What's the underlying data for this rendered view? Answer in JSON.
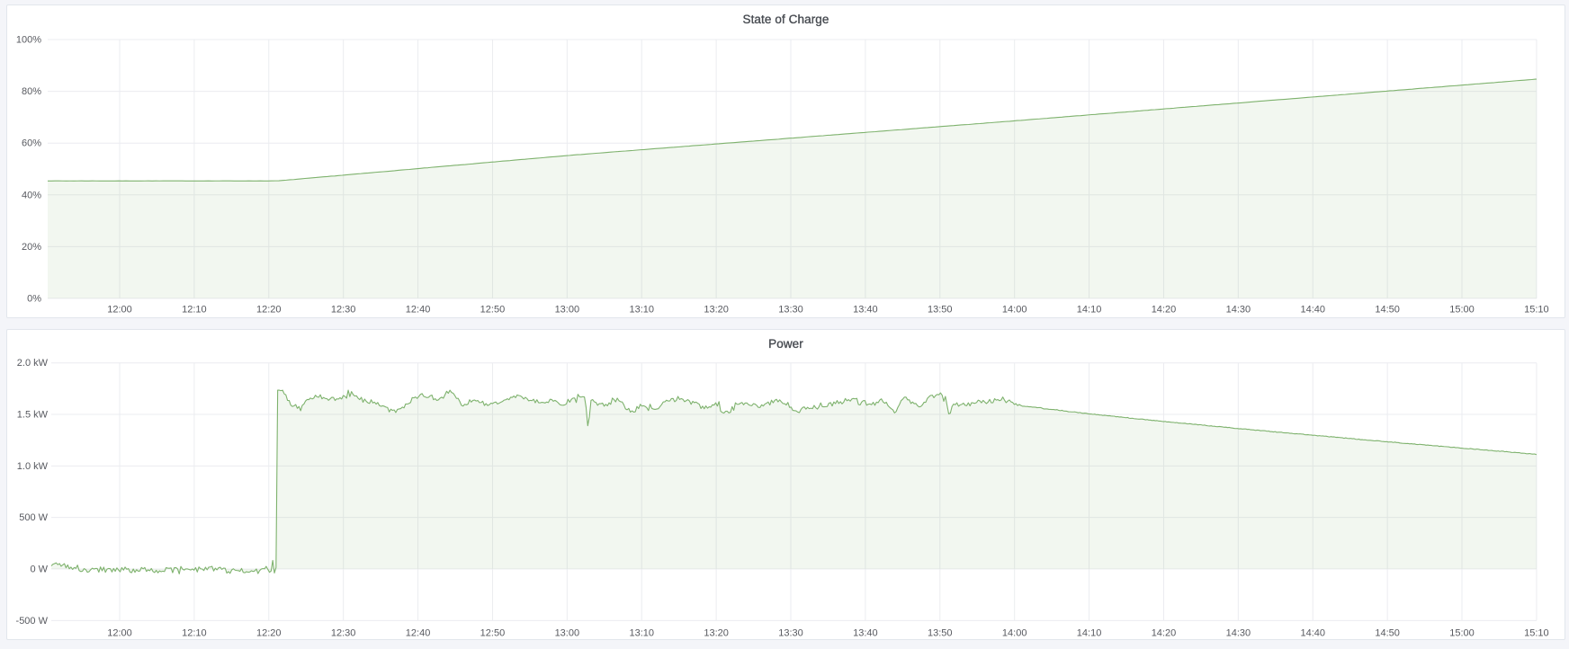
{
  "style": {
    "page_background": "#f4f5f9",
    "panel_background": "#ffffff",
    "panel_border": "#e2e6ec",
    "grid_color": "#ebecf0",
    "axis_text_color": "#57595f",
    "title_color": "#474b51",
    "line_color": "#7eb26d",
    "fill_color": "rgba(126,178,109,0.10)"
  },
  "chart_data": [
    {
      "type": "area",
      "title": "State of Charge",
      "unit": "percent",
      "ylim": [
        0,
        100
      ],
      "x_range": [
        "11:51",
        "15:10"
      ],
      "yticks": [
        {
          "v": 0,
          "label": "0%"
        },
        {
          "v": 20,
          "label": "20%"
        },
        {
          "v": 40,
          "label": "40%"
        },
        {
          "v": 60,
          "label": "60%"
        },
        {
          "v": 80,
          "label": "80%"
        },
        {
          "v": 100,
          "label": "100%"
        }
      ],
      "xticks": [
        {
          "t": 0,
          "label": "12:00"
        },
        {
          "t": 10,
          "label": "12:10"
        },
        {
          "t": 20,
          "label": "12:20"
        },
        {
          "t": 30,
          "label": "12:30"
        },
        {
          "t": 40,
          "label": "12:40"
        },
        {
          "t": 50,
          "label": "12:50"
        },
        {
          "t": 60,
          "label": "13:00"
        },
        {
          "t": 70,
          "label": "13:10"
        },
        {
          "t": 80,
          "label": "13:20"
        },
        {
          "t": 90,
          "label": "13:30"
        },
        {
          "t": 100,
          "label": "13:40"
        },
        {
          "t": 110,
          "label": "13:50"
        },
        {
          "t": 120,
          "label": "14:00"
        },
        {
          "t": 130,
          "label": "14:10"
        },
        {
          "t": 140,
          "label": "14:20"
        },
        {
          "t": 150,
          "label": "14:30"
        },
        {
          "t": 160,
          "label": "14:40"
        },
        {
          "t": 170,
          "label": "14:50"
        },
        {
          "t": 180,
          "label": "15:00"
        },
        {
          "t": 190,
          "label": "15:10"
        }
      ],
      "series": [
        {
          "name": "State of Charge",
          "gen": "soc",
          "keypoints": [
            [
              -9.65,
              45.4
            ],
            [
              21.2,
              45.4
            ],
            [
              60,
              55.2
            ],
            [
              120,
              68.6
            ],
            [
              190,
              84.7
            ]
          ],
          "corner_t": 21.2,
          "corner_smooth_min": 0.8,
          "jitter": 0.07,
          "step_min": 0.5
        }
      ]
    },
    {
      "type": "area",
      "title": "Power",
      "unit": "watt",
      "ylim": [
        -500,
        2000
      ],
      "x_range": [
        "11:51",
        "15:10"
      ],
      "yticks": [
        {
          "v": -500,
          "label": "-500 W"
        },
        {
          "v": 0,
          "label": "0 W"
        },
        {
          "v": 500,
          "label": "500 W"
        },
        {
          "v": 1000,
          "label": "1.0 kW"
        },
        {
          "v": 1500,
          "label": "1.5 kW"
        },
        {
          "v": 2000,
          "label": "2.0 kW"
        }
      ],
      "xticks": [
        {
          "t": 0,
          "label": "12:00"
        },
        {
          "t": 10,
          "label": "12:10"
        },
        {
          "t": 20,
          "label": "12:20"
        },
        {
          "t": 30,
          "label": "12:30"
        },
        {
          "t": 40,
          "label": "12:40"
        },
        {
          "t": 50,
          "label": "12:50"
        },
        {
          "t": 60,
          "label": "13:00"
        },
        {
          "t": 70,
          "label": "13:10"
        },
        {
          "t": 80,
          "label": "13:20"
        },
        {
          "t": 90,
          "label": "13:30"
        },
        {
          "t": 100,
          "label": "13:40"
        },
        {
          "t": 110,
          "label": "13:50"
        },
        {
          "t": 120,
          "label": "14:00"
        },
        {
          "t": 130,
          "label": "14:10"
        },
        {
          "t": 140,
          "label": "14:20"
        },
        {
          "t": 150,
          "label": "14:30"
        },
        {
          "t": 160,
          "label": "14:40"
        },
        {
          "t": 170,
          "label": "14:50"
        },
        {
          "t": 180,
          "label": "15:00"
        },
        {
          "t": 190,
          "label": "15:10"
        }
      ],
      "series": [
        {
          "name": "Power",
          "gen": "power",
          "step_min": 0.22,
          "seed": 1337,
          "profile": {
            "jump_t": 21.15,
            "pre": {
              "start_level": 52,
              "decay_to_zero_by": -3.5,
              "decay_len": 5,
              "jitter": 55,
              "spike_prob": 0.1,
              "spike_amp": 150,
              "walk": 14,
              "walk_clamp": 22
            },
            "plateau": {
              "mean": 1622,
              "wave_amp": 55,
              "wave_period": 4.4,
              "wave2_amp": 34,
              "wave2_period": 11,
              "white": 46,
              "spike_prob": 0.05,
              "spike_amp": 110,
              "walk": 26,
              "walk_clamp": 40,
              "start_spike": 95,
              "start_spike_decay": 0.9,
              "end": 120,
              "soft_floor": 1515,
              "cap": 1735,
              "notches": [
                {
                  "t": 62.8,
                  "depth": 270,
                  "width": 0.28
                },
                {
                  "t": 111.3,
                  "depth": 155,
                  "width": 0.35
                }
              ],
              "damp_after": 119,
              "damp_len": 1.0
            },
            "decline": {
              "start_v": 1600,
              "end_v": 1114,
              "end_t": 190,
              "curve_pow": 0.85,
              "jitter": 16,
              "micro_jitter": 6
            }
          }
        }
      ]
    }
  ]
}
